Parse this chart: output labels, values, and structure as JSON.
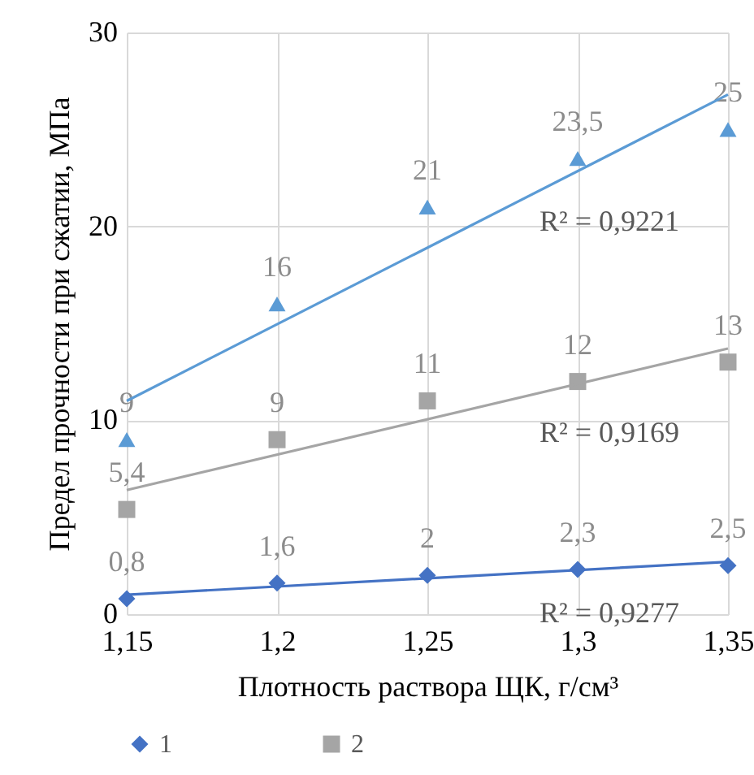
{
  "chart_data": {
    "type": "scatter",
    "xlabel": "Плотность раствора ЩК, г/см³",
    "ylabel": "Предел прочности при сжатии, МПа",
    "categories": [
      "1,15",
      "1,2",
      "1,25",
      "1,3",
      "1,35"
    ],
    "series": [
      {
        "name": "1",
        "color": "#4472c4",
        "marker": "diamond",
        "values": [
          0.8,
          1.6,
          2,
          2.3,
          2.5
        ],
        "value_labels": [
          "0,8",
          "1,6",
          "2",
          "2,3",
          "2,5"
        ]
      },
      {
        "name": "2",
        "color": "#a5a5a5",
        "marker": "square",
        "values": [
          5.4,
          9,
          11,
          12,
          13
        ],
        "value_labels": [
          "5,4",
          "9",
          "11",
          "12",
          "13"
        ]
      },
      {
        "color": "#5b9bd5",
        "marker": "triangle",
        "values": [
          9,
          16,
          21,
          23.5,
          25
        ],
        "value_labels": [
          "9",
          "16",
          "21",
          "23,5",
          "25"
        ]
      },
      {
        "type": "line",
        "color": "#4472c4",
        "x": [
          "1,15",
          "1,35"
        ],
        "values": [
          1.0,
          2.7
        ]
      },
      {
        "type": "line",
        "color": "#a5a5a5",
        "x": [
          "1,15",
          "1,35"
        ],
        "values": [
          6.4,
          13.7
        ]
      },
      {
        "type": "line",
        "color": "#5b9bd5",
        "x": [
          "1,15",
          "1,35"
        ],
        "values": [
          11,
          26.8
        ]
      }
    ],
    "ylim": [
      0,
      30
    ],
    "yticks": [
      0,
      10,
      20,
      30
    ],
    "grid": true,
    "legend": "bottom",
    "annotations": [
      "R² = 0,9221",
      "R² = 0,9169",
      "R² = 0,9277"
    ]
  }
}
